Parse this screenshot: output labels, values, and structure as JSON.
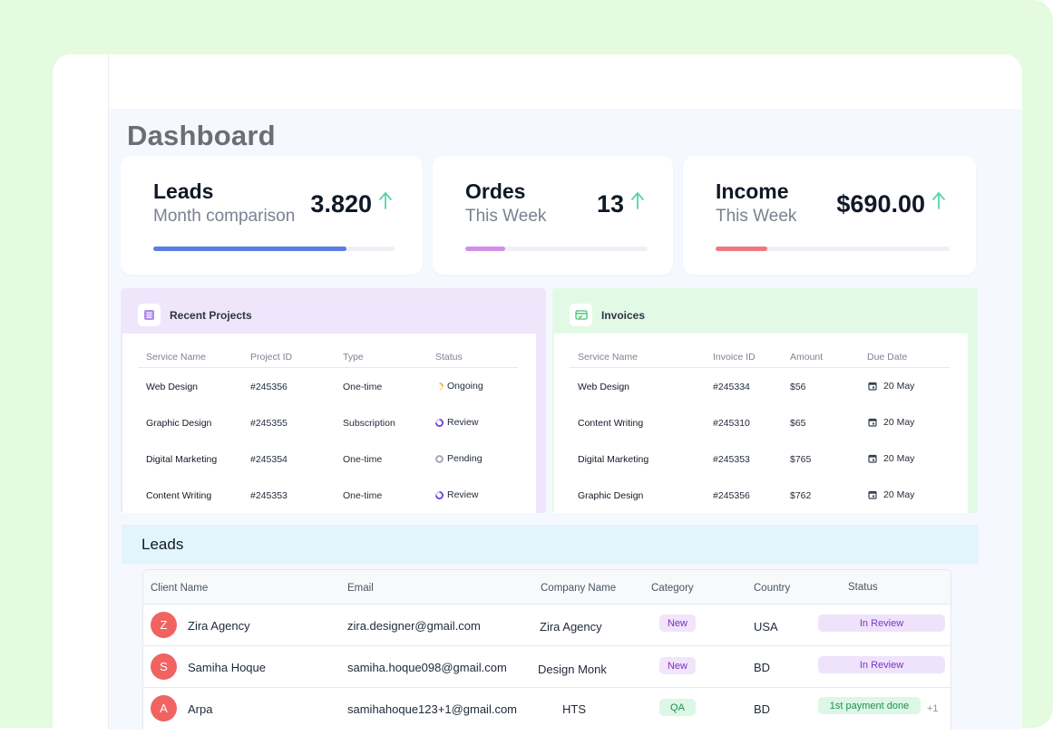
{
  "page": {
    "title": "Dashboard"
  },
  "colors": {
    "leads_bar": "#5b7ee5",
    "orders_bar": "#d28ee9",
    "income_bar": "#f07683",
    "trend_up": "#55d6a4"
  },
  "stats": [
    {
      "title": "Leads",
      "subtitle": "Month comparison",
      "value": "3.820",
      "trend_icon": "arrow-up-icon",
      "progress": 0.8
    },
    {
      "title": "Ordes",
      "subtitle": "This Week",
      "value": "13",
      "trend_icon": "arrow-up-icon",
      "progress": 0.22
    },
    {
      "title": "Income",
      "subtitle": "This Week",
      "value": "$690.00",
      "trend_icon": "arrow-up-icon",
      "progress": 0.22
    }
  ],
  "projects": {
    "title": "Recent Projects",
    "icon": "list-icon",
    "columns": [
      "Service Name",
      "Project ID",
      "Type",
      "Status"
    ],
    "rows": [
      {
        "service": "Web Design",
        "id": "#245356",
        "type": "One-time",
        "status": "Ongoing",
        "status_icon": "ongoing-icon"
      },
      {
        "service": "Graphic Design",
        "id": "#245355",
        "type": "Subscription",
        "status": "Review",
        "status_icon": "review-icon"
      },
      {
        "service": "Digital Marketing",
        "id": "#245354",
        "type": "One-time",
        "status": "Pending",
        "status_icon": "pending-icon"
      },
      {
        "service": "Content Writing",
        "id": "#245353",
        "type": "One-time",
        "status": "Review",
        "status_icon": "review-icon"
      }
    ]
  },
  "invoices": {
    "title": "Invoices",
    "icon": "invoice-icon",
    "columns": [
      "Service Name",
      "Invoice ID",
      "Amount",
      "Due Date"
    ],
    "rows": [
      {
        "service": "Web Design",
        "id": "#245334",
        "amount": "$56",
        "due": "20 May"
      },
      {
        "service": "Content Writing",
        "id": "#245310",
        "amount": "$65",
        "due": "20 May"
      },
      {
        "service": "Digital Marketing",
        "id": "#245353",
        "amount": "$765",
        "due": "20 May"
      },
      {
        "service": "Graphic Design",
        "id": "#245356",
        "amount": "$762",
        "due": "20 May"
      }
    ]
  },
  "leads": {
    "title": "Leads",
    "columns": [
      "Client Name",
      "Email",
      "Company Name",
      "Category",
      "Country",
      "Status"
    ],
    "rows": [
      {
        "initial": "Z",
        "name": "Zira Agency",
        "email": "zira.designer@gmail.com",
        "company": "Zira Agency",
        "category": "New",
        "country": "USA",
        "status": "In Review",
        "extra": ""
      },
      {
        "initial": "S",
        "name": "Samiha Hoque",
        "email": "samiha.hoque098@gmail.com",
        "company": "Design Monk",
        "category": "New",
        "country": "BD",
        "status": "In Review",
        "extra": ""
      },
      {
        "initial": "A",
        "name": "Arpa",
        "email": "samihahoque123+1@gmail.com",
        "company": "HTS",
        "category": "QA",
        "country": "BD",
        "status": "1st payment done",
        "extra": "+1"
      }
    ]
  }
}
